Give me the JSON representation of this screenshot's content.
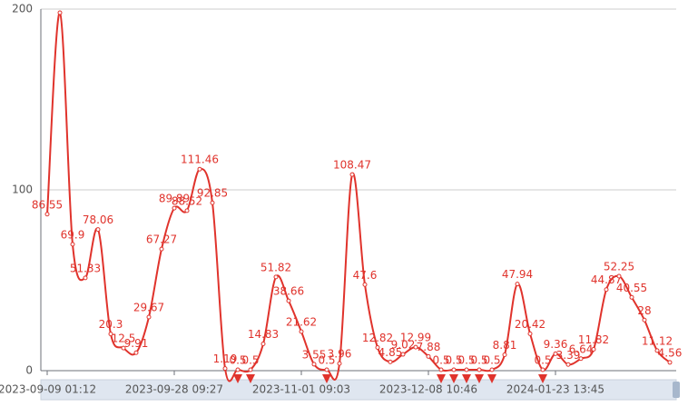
{
  "chart_data": {
    "type": "line",
    "categories": [
      "2023-09-09 01:12",
      null,
      null,
      null,
      null,
      null,
      null,
      null,
      null,
      null,
      "2023-09-28 09:27",
      null,
      null,
      null,
      null,
      null,
      null,
      null,
      null,
      null,
      "2023-11-01 09:03",
      null,
      null,
      null,
      null,
      null,
      null,
      null,
      null,
      null,
      "2023-12-08 10:46",
      null,
      null,
      null,
      null,
      null,
      null,
      null,
      null,
      null,
      "2024-01-23 13:45",
      null,
      null,
      null,
      null,
      null,
      null,
      null,
      null,
      null
    ],
    "series": [
      {
        "color": "#e0332c",
        "values": [
          86.55,
          198,
          69.9,
          51.33,
          78.06,
          20.3,
          12.5,
          9.91,
          29.67,
          67.27,
          89.89,
          88.52,
          111.46,
          92.85,
          1.19,
          0.5,
          0.5,
          14.83,
          51.82,
          38.66,
          21.62,
          3.55,
          0.5,
          3.96,
          108.47,
          47.6,
          12.82,
          4.85,
          9.02,
          12.99,
          7.88,
          0.5,
          0.5,
          0.5,
          0.5,
          0.5,
          8.81,
          47.94,
          20.42,
          0.5,
          9.36,
          3.39,
          6.64,
          11.82,
          44.87,
          52.25,
          40.55,
          28,
          11.12,
          4.56
        ],
        "value_labels": [
          "86.55",
          null,
          "69.9",
          "51.33",
          "78.06",
          "20.3",
          "12.5",
          "9.91",
          "29.67",
          "67.27",
          "89.89",
          "88.52",
          "111.46",
          "92.85",
          "1.19",
          "0.5",
          "0.5",
          "14.83",
          "51.82",
          "38.66",
          "21.62",
          "3.55",
          "0.5",
          "3.96",
          "108.47",
          "47.6",
          "12.82",
          "4.85",
          "9.02",
          "12.99",
          "7.88",
          "0.5",
          "0.5",
          "0.5",
          "0.5",
          "0.5",
          "8.81",
          "47.94",
          "20.42",
          "0.5",
          "9.36",
          "3.39",
          "6.64",
          "11.82",
          "44.87",
          "52.25",
          "40.55",
          "28",
          "11.12",
          "4.56"
        ]
      }
    ],
    "ylim": [
      0,
      200
    ],
    "yticks": [
      0,
      100,
      200
    ],
    "grid": true
  }
}
